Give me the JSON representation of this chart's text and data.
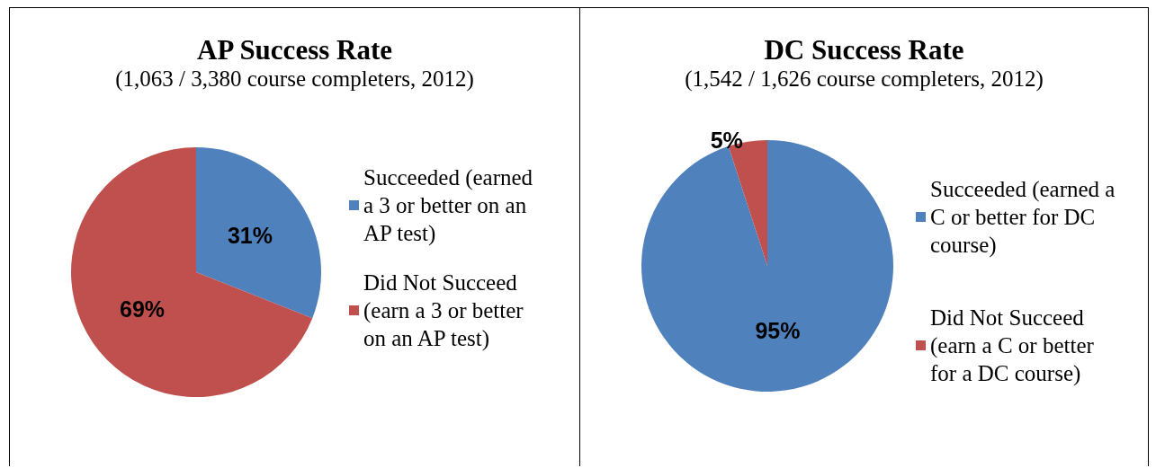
{
  "chart_data": [
    {
      "type": "pie",
      "title": "AP Success Rate",
      "subtitle": "(1,063 / 3,380 course completers, 2012)",
      "categories": [
        "Succeeded (earned a 3 or better on an AP test)",
        "Did Not Succeed (earn a 3 or better on an AP test)"
      ],
      "values": [
        31,
        69
      ],
      "value_labels": [
        "31%",
        "69%"
      ],
      "colors": [
        "#4f81bd",
        "#c0504d"
      ],
      "legend": "right"
    },
    {
      "type": "pie",
      "title": "DC Success Rate",
      "subtitle": "(1,542 / 1,626 course completers, 2012)",
      "categories": [
        "Succeeded (earned a C or better for DC course)",
        "Did Not Succeed (earn a C or better for a DC course)"
      ],
      "values": [
        95,
        5
      ],
      "value_labels": [
        "95%",
        "5%"
      ],
      "colors": [
        "#4f81bd",
        "#c0504d"
      ],
      "legend": "right"
    }
  ]
}
